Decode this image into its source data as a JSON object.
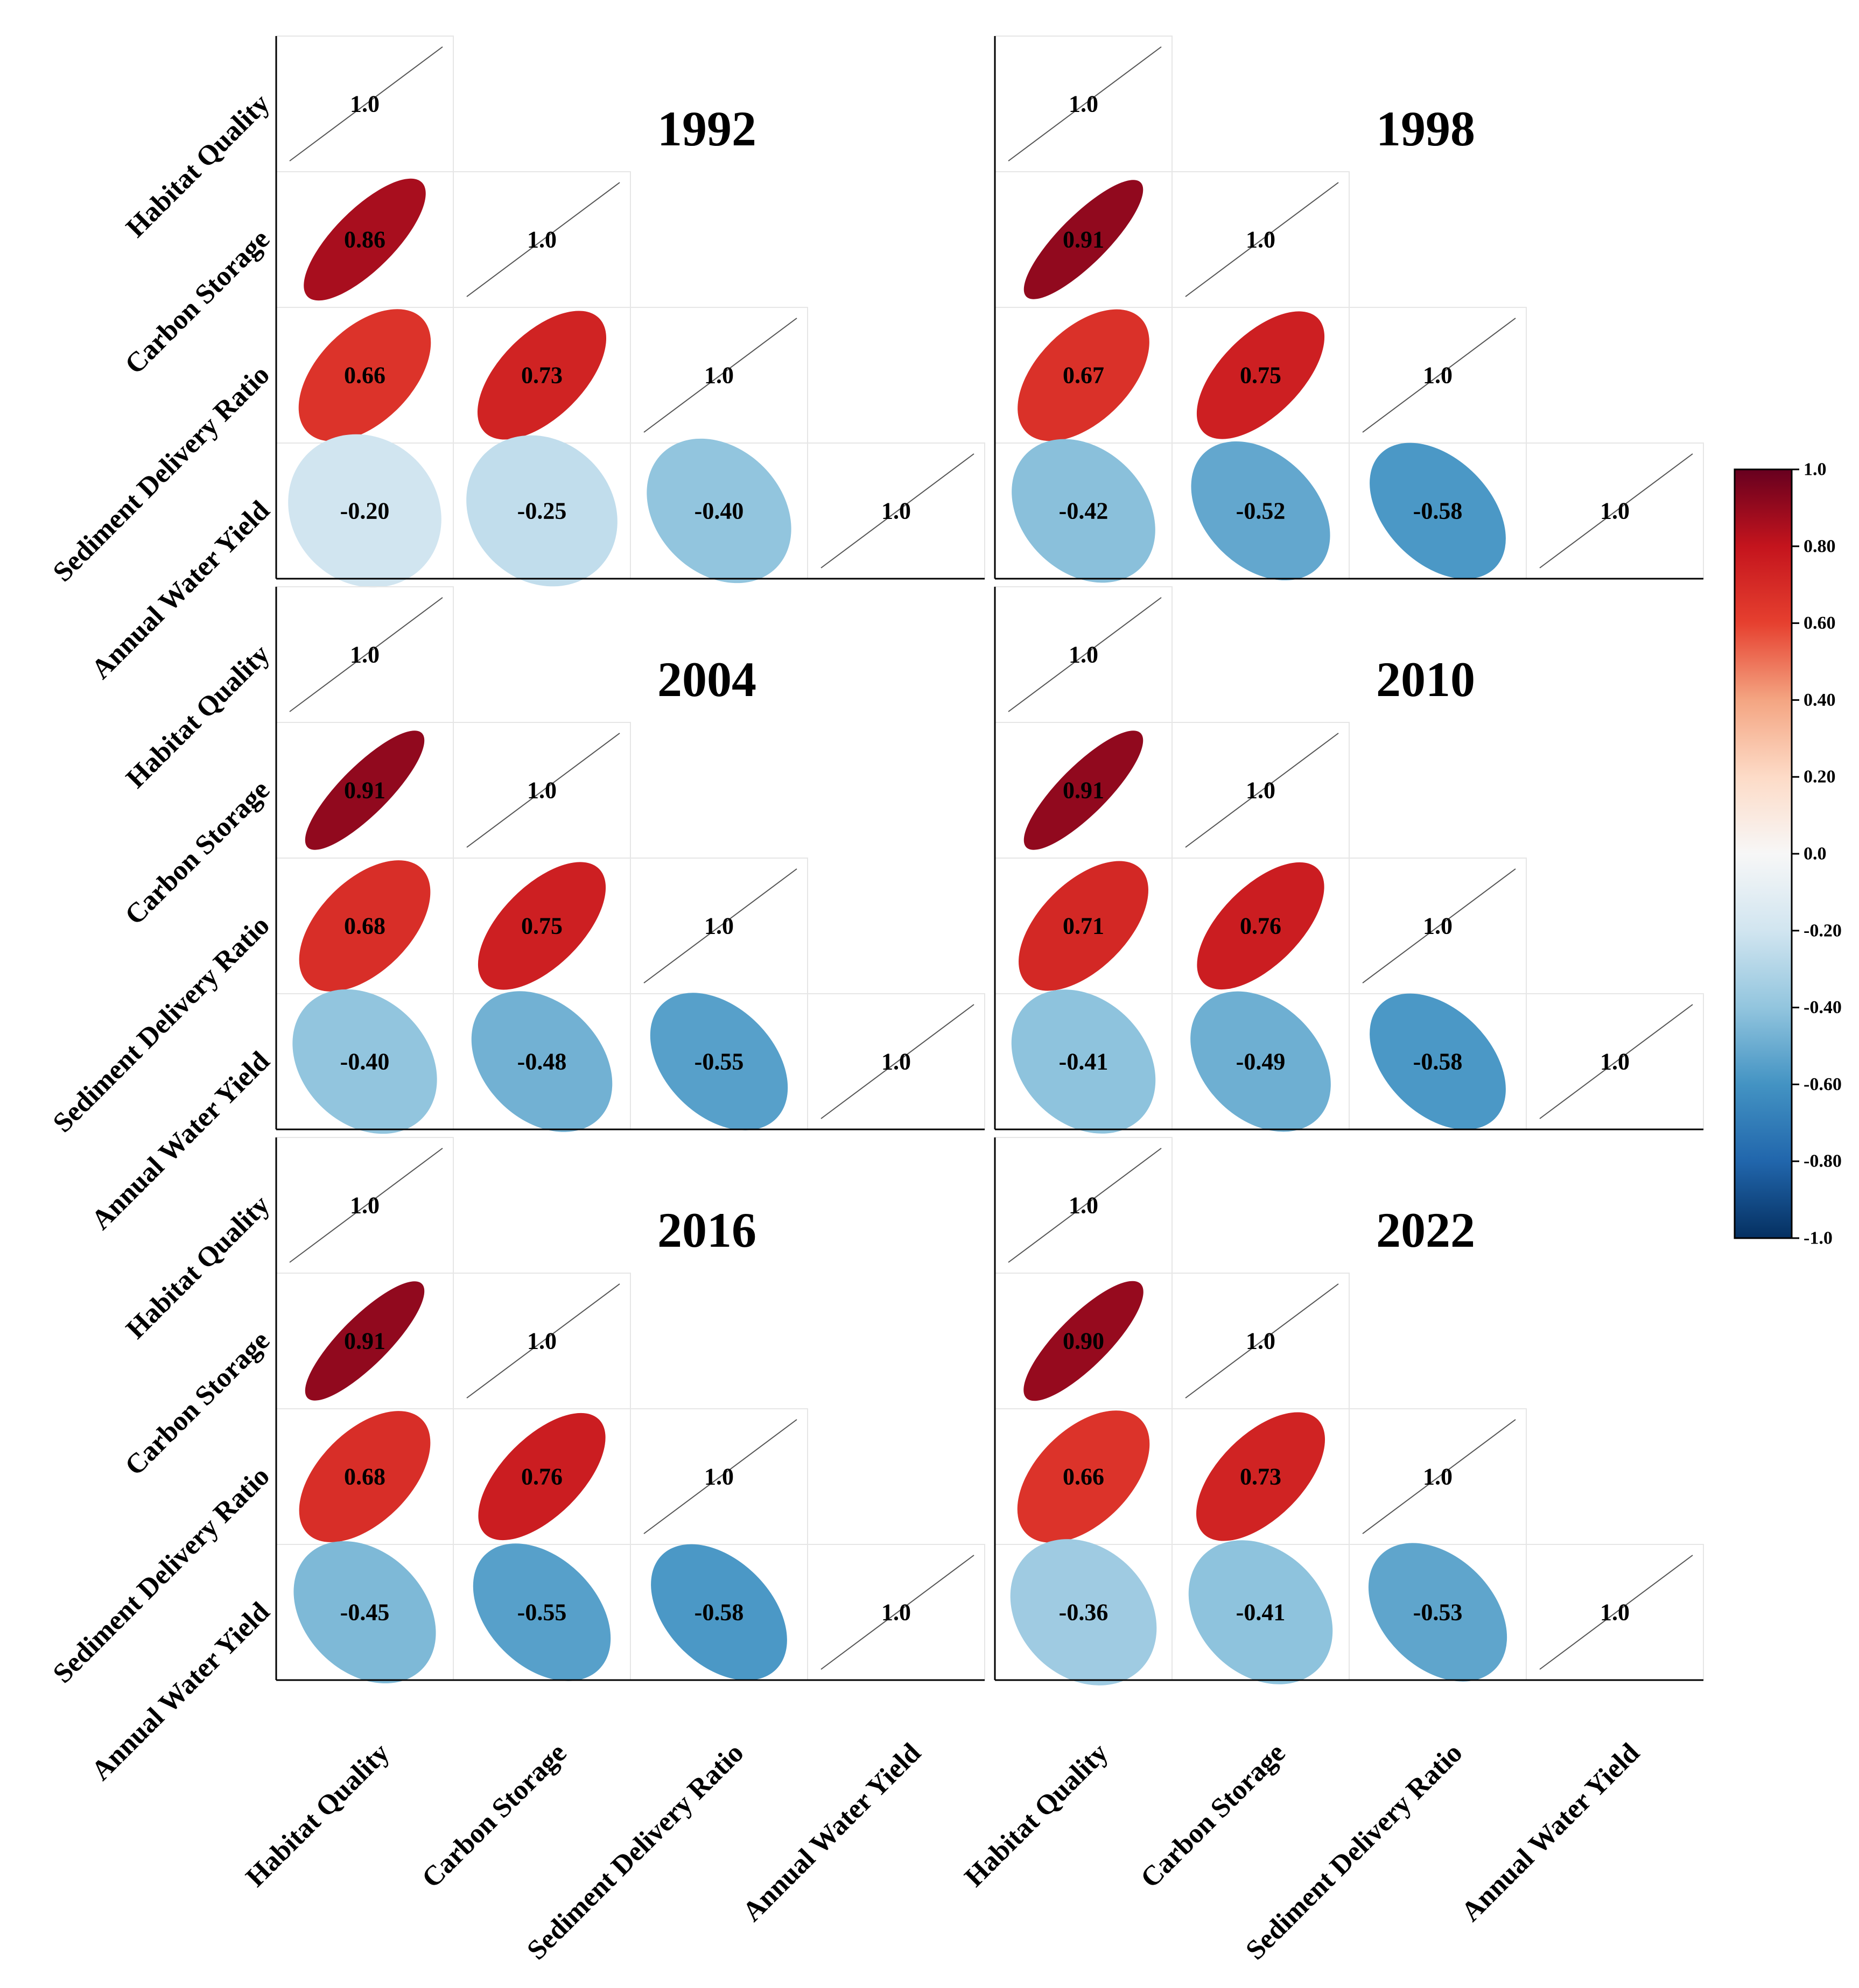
{
  "chart_data": {
    "type": "correlation-matrix",
    "variables": [
      "Habitat Quality",
      "Carbon Storage",
      "Sediment Delivery Ratio",
      "Annual Water Yield"
    ],
    "diagonal_label": "1.0",
    "panels": [
      {
        "year": "1992",
        "correlations": [
          [
            1.0,
            null,
            null,
            null
          ],
          [
            0.86,
            1.0,
            null,
            null
          ],
          [
            0.66,
            0.73,
            1.0,
            null
          ],
          [
            -0.2,
            -0.25,
            -0.4,
            1.0
          ]
        ],
        "labels": [
          [
            "1.0",
            "",
            "",
            ""
          ],
          [
            "0.86",
            "1.0",
            "",
            ""
          ],
          [
            "0.66",
            "0.73",
            "1.0",
            ""
          ],
          [
            "-0.20",
            "-0.25",
            "-0.40",
            "1.0"
          ]
        ]
      },
      {
        "year": "1998",
        "correlations": [
          [
            1.0,
            null,
            null,
            null
          ],
          [
            0.91,
            1.0,
            null,
            null
          ],
          [
            0.67,
            0.75,
            1.0,
            null
          ],
          [
            -0.42,
            -0.52,
            -0.58,
            1.0
          ]
        ],
        "labels": [
          [
            "1.0",
            "",
            "",
            ""
          ],
          [
            "0.91",
            "1.0",
            "",
            ""
          ],
          [
            "0.67",
            "0.75",
            "1.0",
            ""
          ],
          [
            "-0.42",
            "-0.52",
            "-0.58",
            "1.0"
          ]
        ]
      },
      {
        "year": "2004",
        "correlations": [
          [
            1.0,
            null,
            null,
            null
          ],
          [
            0.91,
            1.0,
            null,
            null
          ],
          [
            0.68,
            0.75,
            1.0,
            null
          ],
          [
            -0.4,
            -0.48,
            -0.55,
            1.0
          ]
        ],
        "labels": [
          [
            "1.0",
            "",
            "",
            ""
          ],
          [
            "0.91",
            "1.0",
            "",
            ""
          ],
          [
            "0.68",
            "0.75",
            "1.0",
            ""
          ],
          [
            "-0.40",
            "-0.48",
            "-0.55",
            "1.0"
          ]
        ]
      },
      {
        "year": "2010",
        "correlations": [
          [
            1.0,
            null,
            null,
            null
          ],
          [
            0.91,
            1.0,
            null,
            null
          ],
          [
            0.71,
            0.76,
            1.0,
            null
          ],
          [
            -0.41,
            -0.49,
            -0.58,
            1.0
          ]
        ],
        "labels": [
          [
            "1.0",
            "",
            "",
            ""
          ],
          [
            "0.91",
            "1.0",
            "",
            ""
          ],
          [
            "0.71",
            "0.76",
            "1.0",
            ""
          ],
          [
            "-0.41",
            "-0.49",
            "-0.58",
            "1.0"
          ]
        ]
      },
      {
        "year": "2016",
        "correlations": [
          [
            1.0,
            null,
            null,
            null
          ],
          [
            0.91,
            1.0,
            null,
            null
          ],
          [
            0.68,
            0.76,
            1.0,
            null
          ],
          [
            -0.45,
            -0.55,
            -0.58,
            1.0
          ]
        ],
        "labels": [
          [
            "1.0",
            "",
            "",
            ""
          ],
          [
            "0.91",
            "1.0",
            "",
            ""
          ],
          [
            "0.68",
            "0.76",
            "1.0",
            ""
          ],
          [
            "-0.45",
            "-0.55",
            "-0.58",
            "1.0"
          ]
        ]
      },
      {
        "year": "2022",
        "correlations": [
          [
            1.0,
            null,
            null,
            null
          ],
          [
            0.9,
            1.0,
            null,
            null
          ],
          [
            0.66,
            0.73,
            1.0,
            null
          ],
          [
            -0.36,
            -0.41,
            -0.53,
            1.0
          ]
        ],
        "labels": [
          [
            "1.0",
            "",
            "",
            ""
          ],
          [
            "0.90",
            "1.0",
            "",
            ""
          ],
          [
            "0.66",
            "0.73",
            "1.0",
            ""
          ],
          [
            "-0.36",
            "-0.41",
            "-0.53",
            "1.0"
          ]
        ]
      }
    ],
    "colorbar": {
      "range": [
        -1.0,
        1.0
      ],
      "ticks": [
        1.0,
        0.8,
        0.6,
        0.4,
        0.2,
        0.0,
        -0.2,
        -0.4,
        -0.6,
        -0.8,
        -1.0
      ],
      "tick_labels": [
        "1.0",
        "0.80",
        "0.60",
        "0.40",
        "0.20",
        "0.0",
        "-0.20",
        "-0.40",
        "-0.60",
        "-0.80",
        "-1.0"
      ],
      "colormap": "RdBu",
      "stops": [
        {
          "v": -1.0,
          "color": "#053061"
        },
        {
          "v": -0.8,
          "color": "#2166ac"
        },
        {
          "v": -0.6,
          "color": "#4393c3"
        },
        {
          "v": -0.4,
          "color": "#92c5de"
        },
        {
          "v": -0.2,
          "color": "#d1e5f0"
        },
        {
          "v": 0.0,
          "color": "#f7f7f7"
        },
        {
          "v": 0.2,
          "color": "#fddbc7"
        },
        {
          "v": 0.4,
          "color": "#f4a582"
        },
        {
          "v": 0.6,
          "color": "#e6402f"
        },
        {
          "v": 0.8,
          "color": "#c4141d"
        },
        {
          "v": 1.0,
          "color": "#67001f"
        }
      ]
    }
  }
}
